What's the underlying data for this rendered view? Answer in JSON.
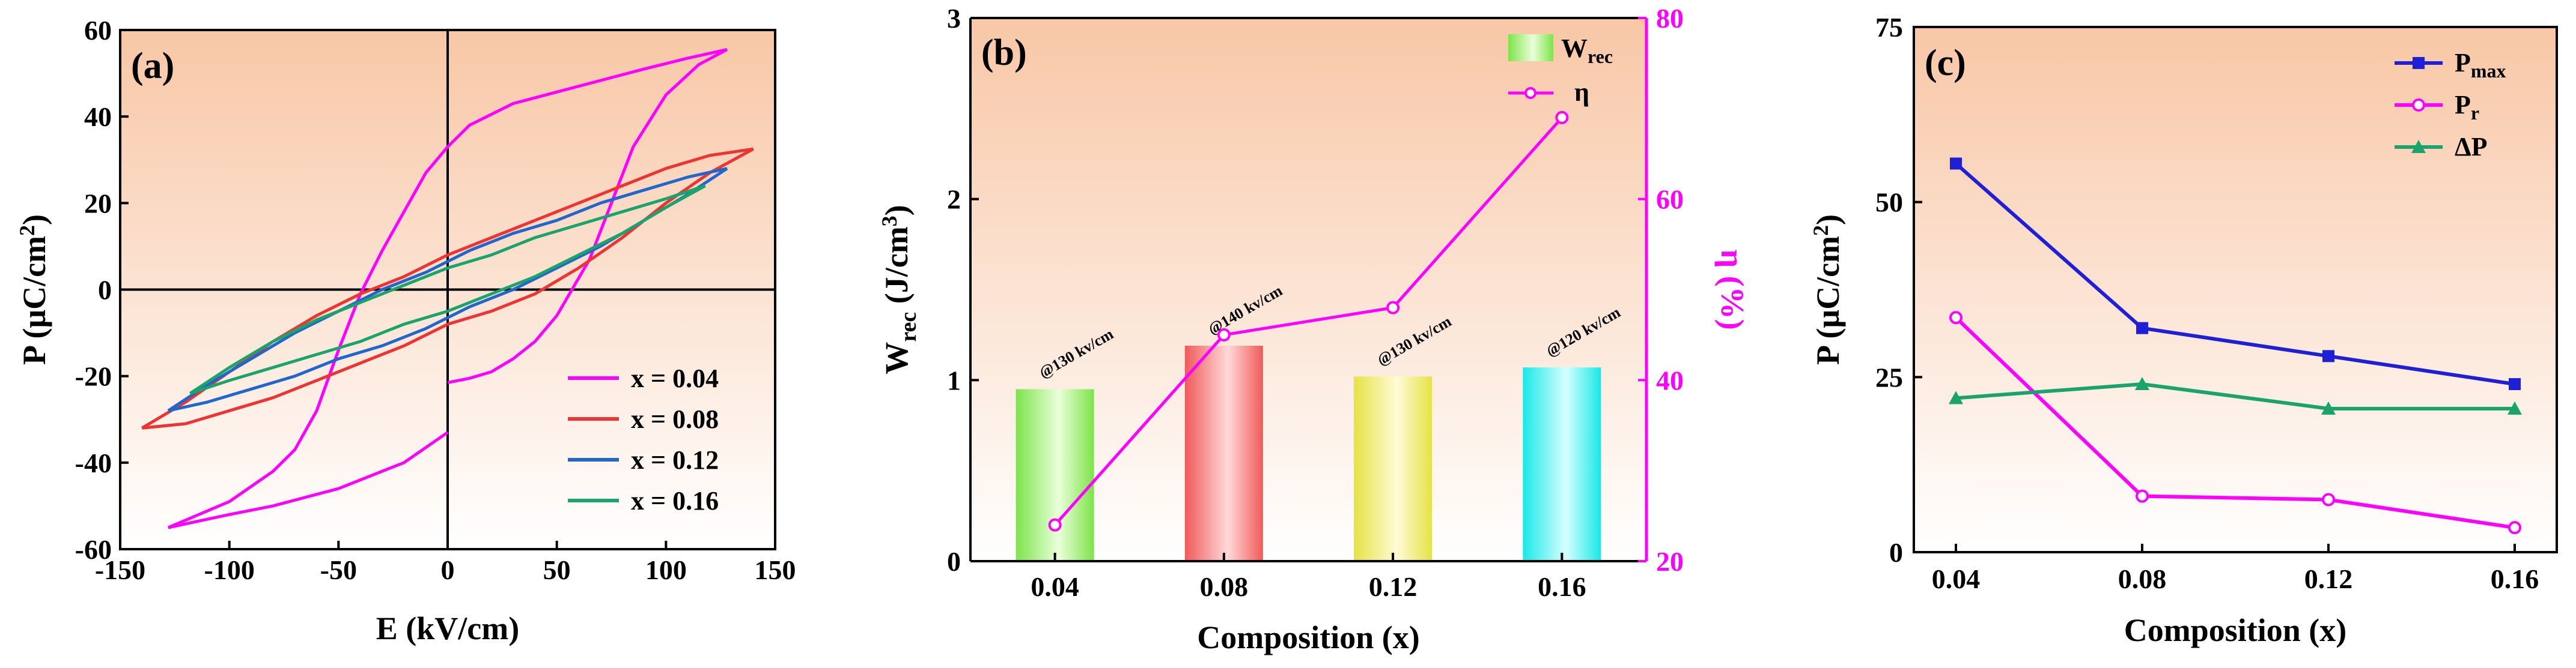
{
  "chart_data": [
    {
      "type": "line",
      "panel_label": "(a)",
      "xlabel": "E (kV/cm)",
      "ylabel": "P (μC/cm²)",
      "ylabel_parts": {
        "main": "P (μC/cm",
        "sup": "2",
        "close": ")"
      },
      "xlim": [
        -150,
        150
      ],
      "ylim": [
        -60,
        60
      ],
      "xticks": [
        -150,
        -100,
        -50,
        0,
        50,
        100,
        150
      ],
      "yticks": [
        -60,
        -40,
        -20,
        0,
        20,
        40,
        60
      ],
      "legend_position": "bottom-right",
      "series": [
        {
          "name": "x = 0.04",
          "color": "#ff00ff",
          "upper": [
            [
              -128,
              -55
            ],
            [
              -100,
              -49
            ],
            [
              -80,
              -42
            ],
            [
              -70,
              -37
            ],
            [
              -60,
              -28
            ],
            [
              -50,
              -14
            ],
            [
              -40,
              -1
            ],
            [
              -30,
              9
            ],
            [
              -20,
              18
            ],
            [
              -10,
              27
            ],
            [
              0,
              33
            ],
            [
              10,
              38
            ],
            [
              30,
              43
            ],
            [
              60,
              47
            ],
            [
              90,
              51
            ],
            [
              110,
              53.5
            ],
            [
              128,
              55.5
            ]
          ],
          "lower": [
            [
              128,
              55.5
            ],
            [
              115,
              52
            ],
            [
              100,
              45
            ],
            [
              85,
              33
            ],
            [
              75,
              20
            ],
            [
              65,
              7
            ],
            [
              50,
              -6
            ],
            [
              40,
              -12
            ],
            [
              30,
              -16
            ],
            [
              20,
              -19
            ],
            [
              10,
              -20.5
            ],
            [
              0,
              -21.5
            ]
          ],
          "tail": [
            [
              0,
              -33
            ],
            [
              -20,
              -40
            ],
            [
              -50,
              -46
            ],
            [
              -80,
              -50
            ],
            [
              -100,
              -52
            ],
            [
              -128,
              -55
            ]
          ]
        },
        {
          "name": "x = 0.08",
          "color": "#ee3333",
          "upper": [
            [
              -140,
              -32
            ],
            [
              -120,
              -26
            ],
            [
              -100,
              -19
            ],
            [
              -80,
              -12
            ],
            [
              -60,
              -6
            ],
            [
              -40,
              -1
            ],
            [
              -20,
              3
            ],
            [
              0,
              8
            ],
            [
              20,
              12
            ],
            [
              40,
              16
            ],
            [
              60,
              20
            ],
            [
              80,
              24
            ],
            [
              100,
              28
            ],
            [
              120,
              31
            ],
            [
              140,
              32.5
            ]
          ],
          "lower": [
            [
              140,
              32.5
            ],
            [
              120,
              27
            ],
            [
              100,
              20
            ],
            [
              80,
              12
            ],
            [
              60,
              5
            ],
            [
              40,
              -1
            ],
            [
              20,
              -5
            ],
            [
              0,
              -8
            ],
            [
              -20,
              -13
            ],
            [
              -40,
              -17
            ],
            [
              -60,
              -21
            ],
            [
              -80,
              -25
            ],
            [
              -100,
              -28
            ],
            [
              -120,
              -31
            ],
            [
              -140,
              -32
            ]
          ]
        },
        {
          "name": "x = 0.12",
          "color": "#2266cc",
          "upper": [
            [
              -128,
              -28
            ],
            [
              -110,
              -22
            ],
            [
              -90,
              -16
            ],
            [
              -70,
              -10
            ],
            [
              -50,
              -5
            ],
            [
              -30,
              0
            ],
            [
              -10,
              4
            ],
            [
              10,
              9
            ],
            [
              30,
              13
            ],
            [
              50,
              16
            ],
            [
              70,
              20
            ],
            [
              90,
              23
            ],
            [
              110,
              26
            ],
            [
              128,
              28
            ]
          ],
          "lower": [
            [
              128,
              28
            ],
            [
              110,
              22
            ],
            [
              90,
              16
            ],
            [
              70,
              10
            ],
            [
              50,
              5
            ],
            [
              30,
              0
            ],
            [
              10,
              -4
            ],
            [
              -10,
              -9
            ],
            [
              -30,
              -13
            ],
            [
              -50,
              -16
            ],
            [
              -70,
              -20
            ],
            [
              -90,
              -23
            ],
            [
              -110,
              -26
            ],
            [
              -128,
              -28
            ]
          ]
        },
        {
          "name": "x = 0.16",
          "color": "#1aa36a",
          "upper": [
            [
              -118,
              -24
            ],
            [
              -100,
              -18
            ],
            [
              -80,
              -12
            ],
            [
              -60,
              -7
            ],
            [
              -40,
              -3
            ],
            [
              -20,
              1
            ],
            [
              0,
              5
            ],
            [
              20,
              8
            ],
            [
              40,
              12
            ],
            [
              60,
              15
            ],
            [
              80,
              18
            ],
            [
              100,
              21
            ],
            [
              118,
              24
            ]
          ],
          "lower": [
            [
              118,
              24
            ],
            [
              100,
              19
            ],
            [
              80,
              13
            ],
            [
              60,
              8
            ],
            [
              40,
              3
            ],
            [
              20,
              -1
            ],
            [
              0,
              -5
            ],
            [
              -20,
              -8
            ],
            [
              -40,
              -12
            ],
            [
              -60,
              -15
            ],
            [
              -80,
              -18
            ],
            [
              -100,
              -21
            ],
            [
              -118,
              -24
            ]
          ]
        }
      ]
    },
    {
      "type": "bar",
      "panel_label": "(b)",
      "xlabel": "Composition (x)",
      "ylabel": "Wrec (J/cm³)",
      "ylabel_parts": {
        "main": "W",
        "sub": "rec",
        "mid": " (J/cm",
        "sup": "3",
        "close": ")"
      },
      "y2label": "η (%)",
      "categories": [
        "0.04",
        "0.08",
        "0.12",
        "0.16"
      ],
      "ylim": [
        0,
        3
      ],
      "yticks": [
        0,
        1,
        2,
        3
      ],
      "y2lim": [
        20,
        80
      ],
      "y2ticks": [
        20,
        40,
        60,
        80
      ],
      "legend_position": "top-right",
      "series": [
        {
          "name": "Wrec",
          "name_parts": {
            "main": "W",
            "sub": "rec"
          },
          "type": "bar",
          "values": [
            0.95,
            1.19,
            1.02,
            1.07
          ],
          "colors": [
            "#7de34a",
            "#f05a5a",
            "#e6e244",
            "#19e8e8"
          ]
        },
        {
          "name": "η",
          "type": "line",
          "axis": "right",
          "color": "#ff00ff",
          "values": [
            24,
            45,
            48,
            69
          ]
        }
      ],
      "annotations": [
        "@130 kv/cm",
        "@140 kv/cm",
        "@130 kv/cm",
        "@120 kv/cm"
      ]
    },
    {
      "type": "line",
      "panel_label": "(c)",
      "xlabel": "Composition (x)",
      "ylabel": "P (μC/cm²)",
      "ylabel_parts": {
        "main": "P (μC/cm",
        "sup": "2",
        "close": ")"
      },
      "categories": [
        "0.04",
        "0.08",
        "0.12",
        "0.16"
      ],
      "ylim": [
        0,
        75
      ],
      "yticks": [
        0,
        25,
        50,
        75
      ],
      "legend_position": "top-right",
      "series": [
        {
          "name": "Pmax",
          "name_parts": {
            "main": "P",
            "sub": "max"
          },
          "color": "#1f1fd6",
          "marker": "square",
          "values": [
            55.5,
            32,
            28,
            24
          ]
        },
        {
          "name": "Pr",
          "name_parts": {
            "main": "P",
            "sub": "r"
          },
          "color": "#ff00ff",
          "marker": "circle",
          "values": [
            33.5,
            8,
            7.5,
            3.5
          ]
        },
        {
          "name": "ΔP",
          "name_parts": {
            "main": "ΔP",
            "sub": ""
          },
          "color": "#1aa36a",
          "marker": "triangle",
          "values": [
            22,
            24,
            20.5,
            20.5
          ]
        }
      ]
    }
  ],
  "colors": {
    "bg_top": "#f8c7a6",
    "bg_bottom": "#ffffff"
  }
}
